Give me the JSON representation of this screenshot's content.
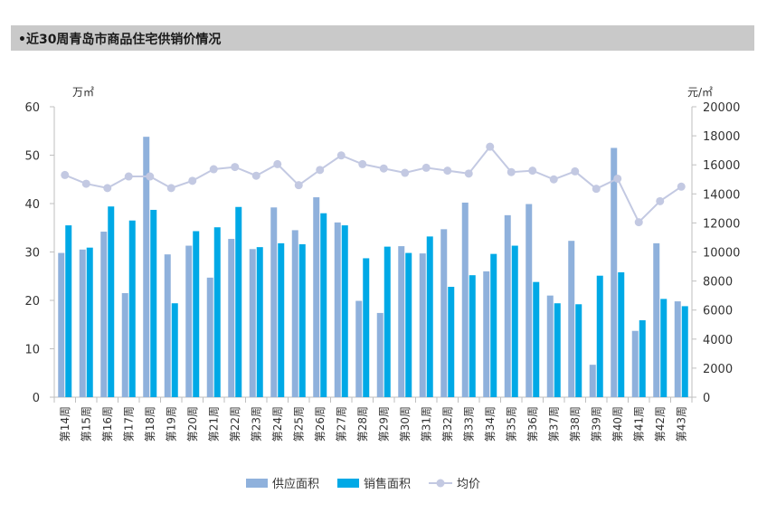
{
  "title": "•近30周青岛市商品住宅供销价情况",
  "chart_data": {
    "type": "bar+line",
    "title": "近30周青岛市商品住宅供销价情况",
    "categories": [
      "第14周",
      "第15周",
      "第16周",
      "第17周",
      "第18周",
      "第19周",
      "第20周",
      "第21周",
      "第22周",
      "第23周",
      "第24周",
      "第25周",
      "第26周",
      "第27周",
      "第28周",
      "第29周",
      "第30周",
      "第31周",
      "第32周",
      "第33周",
      "第34周",
      "第35周",
      "第36周",
      "第37周",
      "第38周",
      "第39周",
      "第40周",
      "第41周",
      "第42周",
      "第43周"
    ],
    "left_axis": {
      "unit": "万㎡",
      "ylim": [
        0,
        60
      ],
      "ticks": [
        0,
        10,
        20,
        30,
        40,
        50,
        60
      ]
    },
    "right_axis": {
      "unit": "元/㎡",
      "ylim": [
        0,
        20000
      ],
      "ticks": [
        0,
        2000,
        4000,
        6000,
        8000,
        10000,
        12000,
        14000,
        16000,
        18000,
        20000
      ]
    },
    "series": [
      {
        "name": "供应面积",
        "type": "bar",
        "axis": "left",
        "color": "#8fb1dc",
        "values": [
          29.8,
          30.5,
          34.2,
          21.5,
          53.8,
          29.5,
          31.3,
          24.7,
          32.7,
          30.6,
          39.2,
          34.5,
          41.3,
          36.1,
          19.9,
          17.4,
          31.2,
          29.7,
          34.7,
          40.2,
          26.0,
          37.6,
          39.9,
          21.0,
          32.3,
          6.7,
          51.5,
          13.7,
          31.8,
          19.8
        ]
      },
      {
        "name": "销售面积",
        "type": "bar",
        "axis": "left",
        "color": "#00a9e6",
        "values": [
          35.5,
          30.9,
          39.4,
          36.5,
          38.7,
          19.4,
          34.3,
          35.1,
          39.3,
          31.0,
          31.8,
          31.6,
          38.0,
          35.5,
          28.7,
          31.1,
          29.8,
          33.2,
          22.8,
          25.2,
          29.6,
          31.3,
          23.8,
          19.4,
          19.2,
          25.1,
          25.8,
          15.9,
          20.3,
          18.8
        ]
      },
      {
        "name": "均价",
        "type": "line",
        "axis": "right",
        "color": "#c3c9e2",
        "values": [
          15300,
          14700,
          14400,
          15200,
          15200,
          14400,
          14900,
          15700,
          15850,
          15250,
          16050,
          14600,
          15650,
          16650,
          16050,
          15750,
          15450,
          15800,
          15600,
          15400,
          17250,
          15500,
          15600,
          15000,
          15550,
          14350,
          15050,
          12050,
          13500,
          14500
        ]
      }
    ],
    "legend_position": "bottom"
  }
}
